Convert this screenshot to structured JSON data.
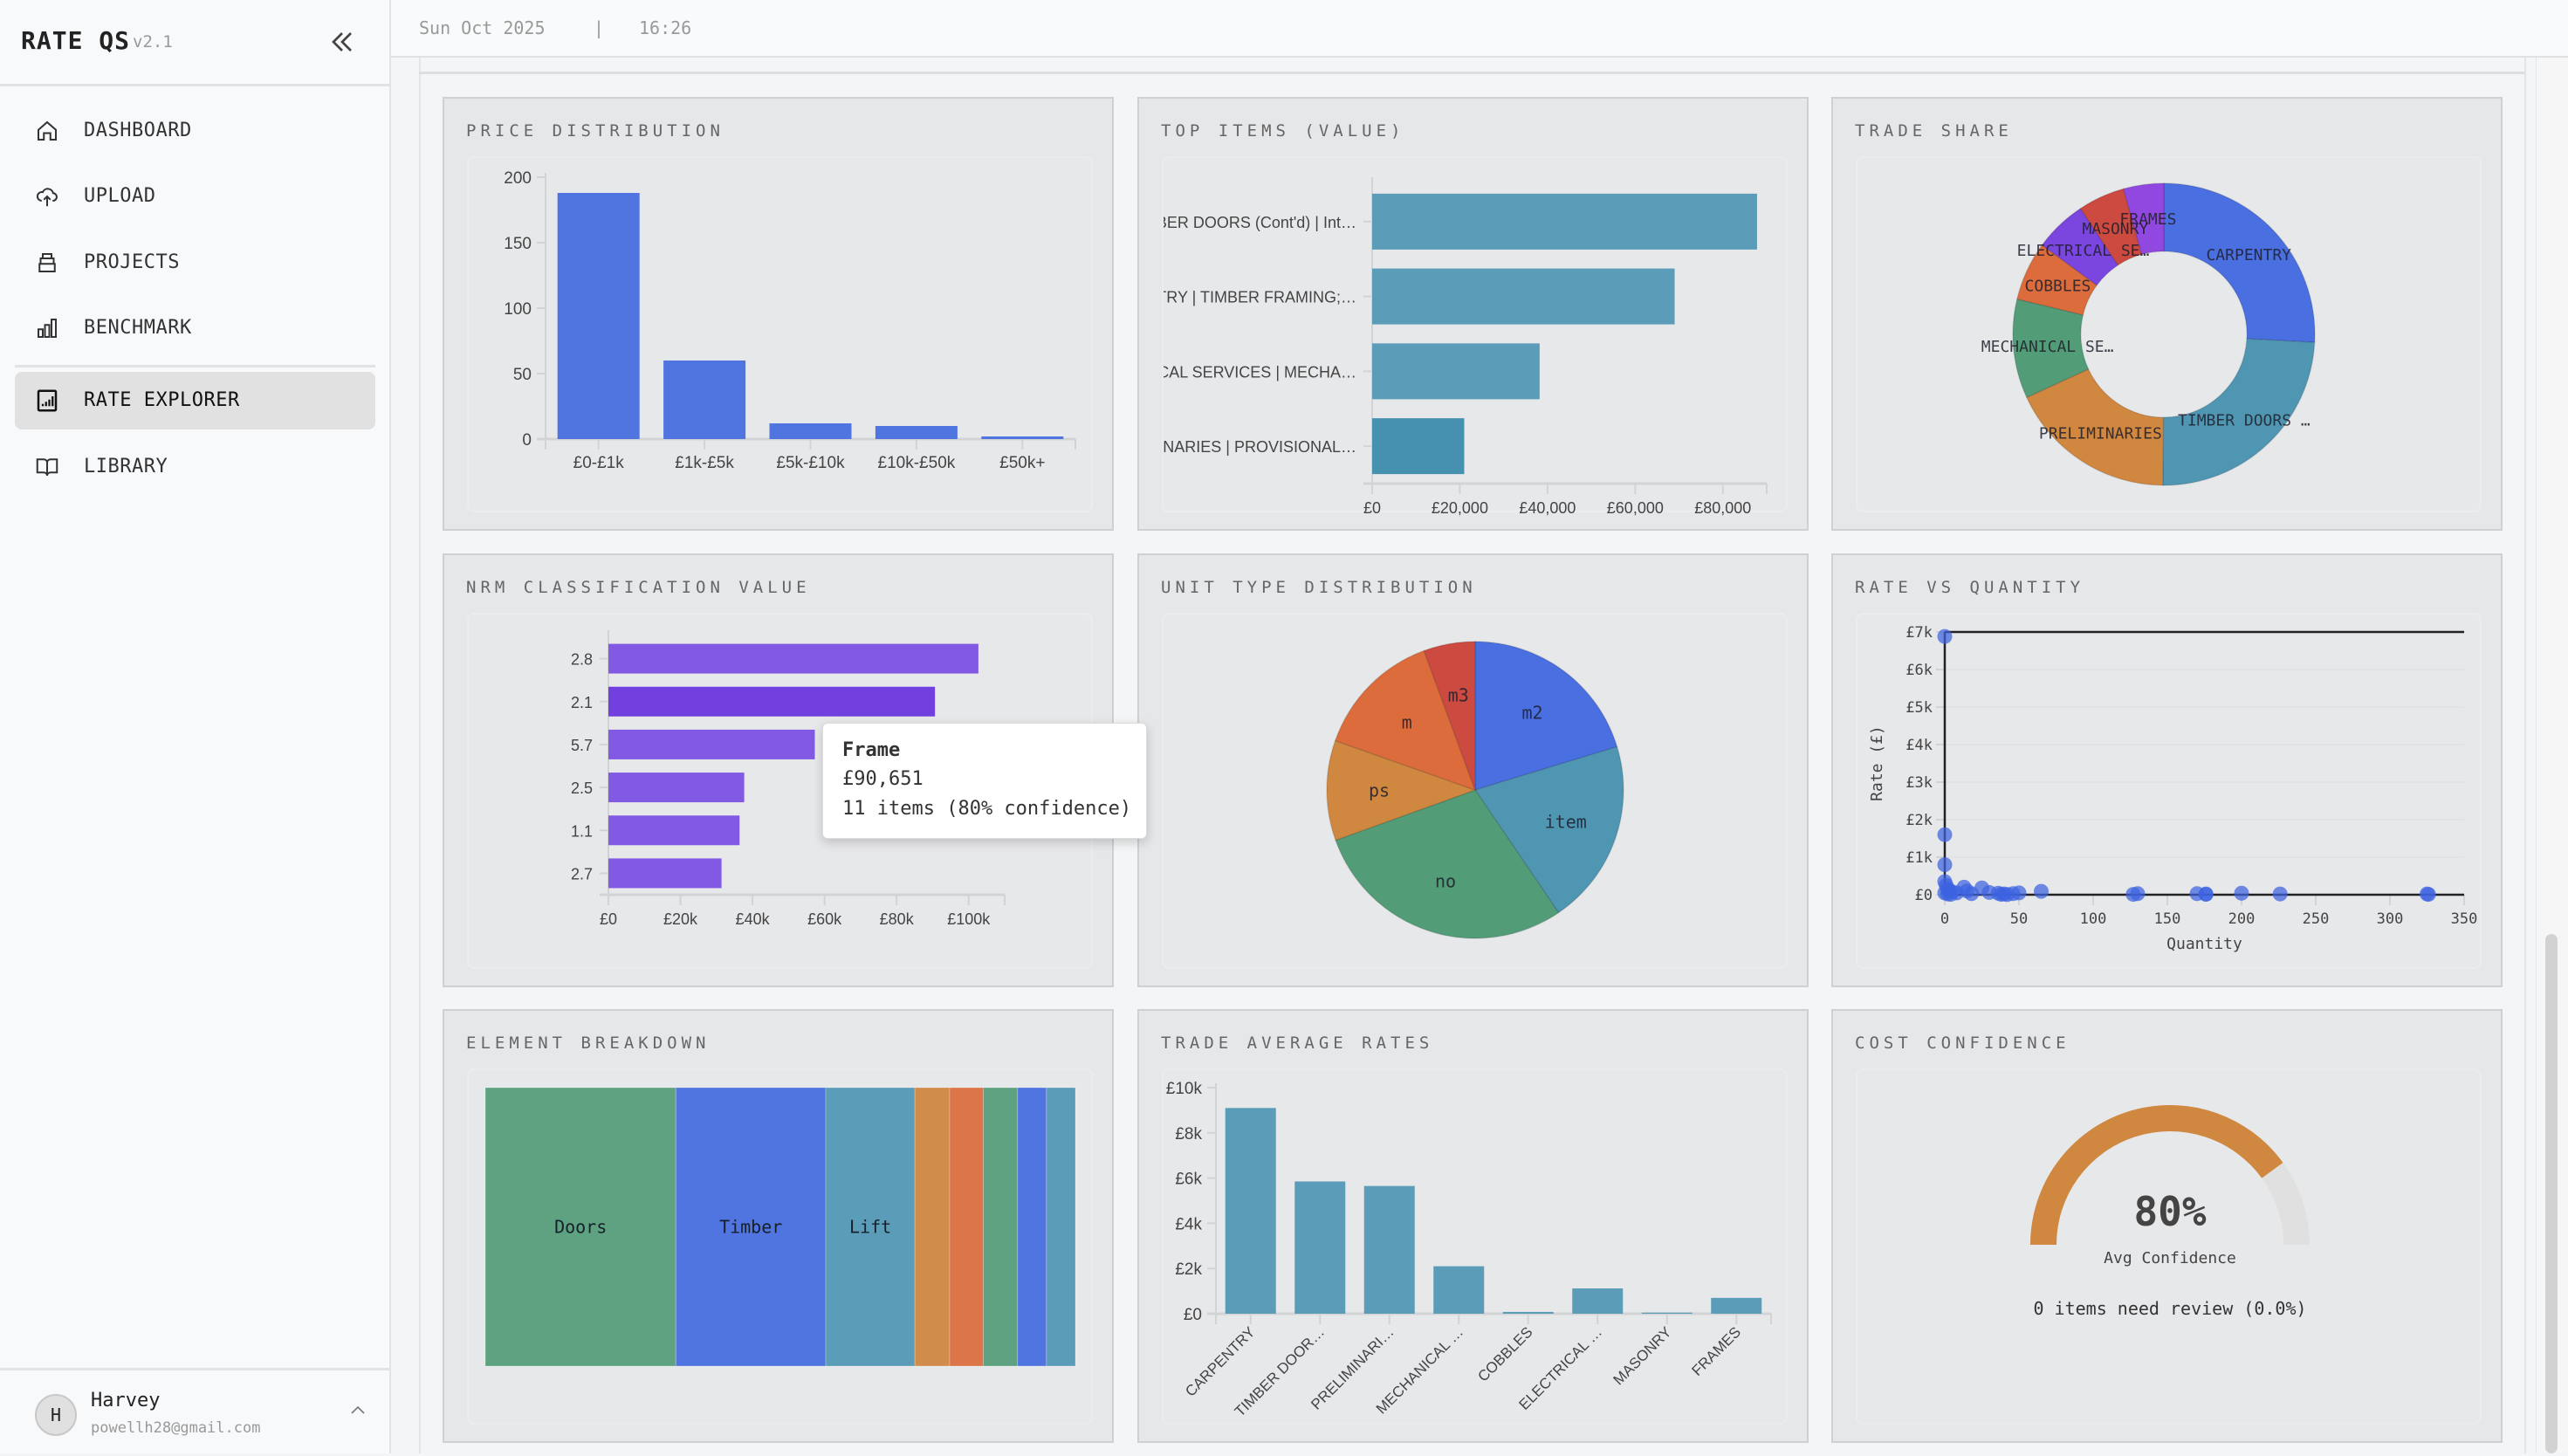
{
  "app": {
    "title": "RATE QS",
    "version": "v2.1"
  },
  "header": {
    "date": "Sun Oct 2025",
    "separator": "|",
    "time": "16:26"
  },
  "sidebar": {
    "items": [
      {
        "label": "DASHBOARD",
        "icon": "home-icon",
        "active": false
      },
      {
        "label": "UPLOAD",
        "icon": "cloud-upload-icon",
        "active": false
      },
      {
        "label": "PROJECTS",
        "icon": "stack-icon",
        "active": false
      },
      {
        "label": "BENCHMARK",
        "icon": "bar-chart-icon",
        "active": false
      },
      {
        "label": "RATE EXPLORER",
        "icon": "chart-square-icon",
        "active": true
      },
      {
        "label": "LIBRARY",
        "icon": "book-icon",
        "active": false
      }
    ],
    "user": {
      "initial": "H",
      "name": "Harvey",
      "email": "powellh28@gmail.com"
    }
  },
  "cards": [
    {
      "title": "PRICE DISTRIBUTION"
    },
    {
      "title": "TOP ITEMS (VALUE)"
    },
    {
      "title": "TRADE SHARE"
    },
    {
      "title": "NRM CLASSIFICATION VALUE"
    },
    {
      "title": "UNIT TYPE DISTRIBUTION"
    },
    {
      "title": "RATE VS QUANTITY"
    },
    {
      "title": "ELEMENT BREAKDOWN"
    },
    {
      "title": "TRADE AVERAGE RATES"
    },
    {
      "title": "COST CONFIDENCE"
    }
  ],
  "tooltip": {
    "title": "Frame",
    "value": "£90,651",
    "detail": "11 items (80% confidence)"
  },
  "colors": {
    "blue": "#5075e0",
    "teal": "#5b9cb8",
    "purple": "#8259e3",
    "orange": "#d0873f",
    "green": "#5ea281",
    "red": "#cc4a40"
  },
  "chart_data": [
    {
      "type": "bar",
      "categories": [
        "£0-£1k",
        "£1k-£5k",
        "£5k-£10k",
        "£10k-£50k",
        "£50k+"
      ],
      "values": [
        188,
        60,
        12,
        10,
        2
      ],
      "ylim": [
        0,
        200
      ],
      "yticks": [
        {
          "v": 0,
          "label": "0"
        },
        {
          "v": 50,
          "label": "50"
        },
        {
          "v": 100,
          "label": "100"
        },
        {
          "v": 150,
          "label": "150"
        },
        {
          "v": 200,
          "label": "200"
        }
      ],
      "color": "#5075e0",
      "grid": false
    },
    {
      "type": "bar",
      "orientation": "horizontal",
      "categories": [
        "BER DOORS (Cont'd) | Int…",
        "TRY | TIMBER FRAMING;…",
        "CAL SERVICES | MECHA…",
        "NARIES | PROVISIONAL…"
      ],
      "values": [
        87800,
        69000,
        38200,
        21000
      ],
      "xlim": [
        0,
        90000
      ],
      "xticks": [
        {
          "v": 0,
          "label": "£0"
        },
        {
          "v": 20000,
          "label": "£20,000"
        },
        {
          "v": 40000,
          "label": "£40,000"
        },
        {
          "v": 60000,
          "label": "£60,000"
        },
        {
          "v": 80000,
          "label": "£80,000"
        }
      ],
      "colors": [
        "#5b9cb8",
        "#5b9cb8",
        "#5b9cb8",
        "#4690b0"
      ],
      "grid": false
    },
    {
      "type": "pie",
      "hole": 0.55,
      "labels": [
        "CARPENTRY",
        "TIMBER DOORS …",
        "PRELIMINARIES",
        "MECHANICAL SE…",
        "COBBLES",
        "ELECTRICAL SE…",
        "MASONRY",
        "FRAMES"
      ],
      "values": [
        25.8,
        24.2,
        18.0,
        10.6,
        6.3,
        5.6,
        5.0,
        4.3
      ],
      "colors": [
        "#4a6fe0",
        "#4f96b3",
        "#d0873f",
        "#529c78",
        "#dc6c3c",
        "#7b45e0",
        "#cc4a40",
        "#9048e0"
      ]
    },
    {
      "type": "bar",
      "orientation": "horizontal",
      "categories": [
        "2.8",
        "2.1",
        "5.7",
        "2.5",
        "1.1",
        "2.7"
      ],
      "values": [
        102700,
        90651,
        57300,
        37700,
        36400,
        31400
      ],
      "xlim": [
        0,
        110000
      ],
      "xticks": [
        {
          "v": 0,
          "label": "£0"
        },
        {
          "v": 20000,
          "label": "£20k"
        },
        {
          "v": 40000,
          "label": "£40k"
        },
        {
          "v": 60000,
          "label": "£60k"
        },
        {
          "v": 80000,
          "label": "£80k"
        },
        {
          "v": 100000,
          "label": "£100k"
        }
      ],
      "colors": [
        "#8259e3",
        "#7340e0",
        "#8259e3",
        "#8259e3",
        "#8259e3",
        "#8259e3"
      ],
      "grid": false
    },
    {
      "type": "pie",
      "hole": 0,
      "labels": [
        "m2",
        "item",
        "no",
        "ps",
        "m",
        "m3"
      ],
      "values": [
        20.3,
        20.2,
        29.0,
        10.9,
        14.0,
        5.6
      ],
      "colors": [
        "#4a6fe0",
        "#4f96b3",
        "#529c78",
        "#d0873f",
        "#dc6c3c",
        "#cc4a40"
      ]
    },
    {
      "type": "scatter",
      "xlabel": "Quantity",
      "ylabel": "Rate (£)",
      "xlim": [
        0,
        350
      ],
      "ylim": [
        0,
        7000
      ],
      "xticks": [
        {
          "v": 0,
          "label": "0"
        },
        {
          "v": 50,
          "label": "50"
        },
        {
          "v": 100,
          "label": "100"
        },
        {
          "v": 150,
          "label": "150"
        },
        {
          "v": 200,
          "label": "200"
        },
        {
          "v": 250,
          "label": "250"
        },
        {
          "v": 300,
          "label": "300"
        },
        {
          "v": 350,
          "label": "350"
        }
      ],
      "yticks": [
        {
          "v": 0,
          "label": "£0"
        },
        {
          "v": 1000,
          "label": "£1k"
        },
        {
          "v": 2000,
          "label": "£2k"
        },
        {
          "v": 3000,
          "label": "£3k"
        },
        {
          "v": 4000,
          "label": "£4k"
        },
        {
          "v": 5000,
          "label": "£5k"
        },
        {
          "v": 6000,
          "label": "£6k"
        },
        {
          "v": 7000,
          "label": "£7k"
        }
      ],
      "color": "#3d63e0",
      "grid": true,
      "points": [
        [
          0,
          6880
        ],
        [
          0,
          1600
        ],
        [
          0,
          800
        ],
        [
          0,
          350
        ],
        [
          1,
          250
        ],
        [
          2,
          150
        ],
        [
          3,
          100
        ],
        [
          5,
          80
        ],
        [
          8,
          50
        ],
        [
          0,
          50
        ],
        [
          2,
          20
        ],
        [
          4,
          10
        ],
        [
          13,
          200
        ],
        [
          15,
          100
        ],
        [
          18,
          30
        ],
        [
          25,
          180
        ],
        [
          30,
          60
        ],
        [
          36,
          40
        ],
        [
          38,
          10
        ],
        [
          40,
          20
        ],
        [
          42,
          5
        ],
        [
          46,
          30
        ],
        [
          50,
          50
        ],
        [
          65,
          90
        ],
        [
          127,
          10
        ],
        [
          130,
          30
        ],
        [
          170,
          30
        ],
        [
          176,
          10
        ],
        [
          176,
          20
        ],
        [
          200,
          40
        ],
        [
          226,
          20
        ],
        [
          325,
          20
        ],
        [
          326,
          10
        ]
      ]
    },
    {
      "type": "treemap",
      "labels": [
        "Doors",
        "Timber",
        "Lift",
        "",
        "",
        "",
        "",
        ""
      ],
      "values": [
        32.3,
        25.4,
        15.1,
        5.9,
        5.7,
        5.8,
        4.9,
        4.9
      ],
      "colors": [
        "#5ea281",
        "#5075e0",
        "#5b9cb8",
        "#d08c4a",
        "#dc764a",
        "#5ea281",
        "#5075e0",
        "#5b9cb8"
      ]
    },
    {
      "type": "bar",
      "categories": [
        "CARPENTRY",
        "TIMBER DOOR…",
        "PRELIMINARI…",
        "MECHANICAL …",
        "COBBLES",
        "ELECTRICAL …",
        "MASONRY",
        "FRAMES"
      ],
      "values": [
        9100,
        5850,
        5650,
        2100,
        80,
        1120,
        50,
        700
      ],
      "ylim": [
        0,
        10000
      ],
      "yticks": [
        {
          "v": 0,
          "label": "£0"
        },
        {
          "v": 2000,
          "label": "£2k"
        },
        {
          "v": 4000,
          "label": "£4k"
        },
        {
          "v": 6000,
          "label": "£6k"
        },
        {
          "v": 8000,
          "label": "£8k"
        },
        {
          "v": 10000,
          "label": "£10k"
        }
      ],
      "color": "#5b9cb8",
      "grid": false
    },
    {
      "type": "gauge",
      "value": 80,
      "max": 100,
      "label": "80%",
      "sublabel": "Avg Confidence",
      "note": "0 items need review (0.0%)",
      "color": "#d0873f",
      "track_color": "#e0e0e0"
    }
  ]
}
